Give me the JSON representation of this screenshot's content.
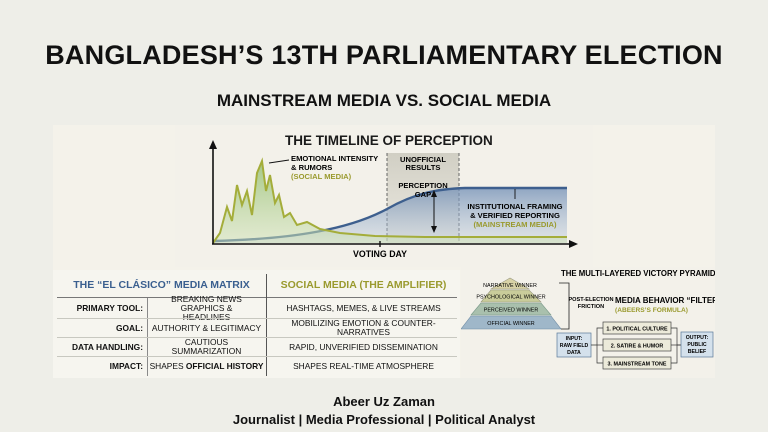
{
  "header": {
    "title": "BANGLADESH’S 13TH PARLIAMENTARY ELECTION",
    "subtitle": "MAINSTREAM MEDIA VS. SOCIAL MEDIA"
  },
  "timeline": {
    "title": "THE TIMELINE OF PERCEPTION",
    "emotional_line1": "EMOTIONAL INTENSITY",
    "emotional_line2": "& RUMORS",
    "emotional_source": "(SOCIAL MEDIA)",
    "unofficial_line1": "UNOFFICIAL",
    "unofficial_line2": "RESULTS",
    "gap_line1": "PERCEPTION",
    "gap_line2": "GAP",
    "institutional_line1": "INSTITUTIONAL FRAMING",
    "institutional_line2": "& VERIFIED REPORTING",
    "institutional_source": "(MAINSTREAM MEDIA)",
    "xlabel": "VOTING DAY",
    "colors": {
      "social": "#8fb86a",
      "mainstream": "#3d5f8e",
      "gap_band": "#c8c6b8"
    }
  },
  "matrix": {
    "head_left": "THE “EL CLÁSICO” MEDIA MATRIX",
    "head_right": "SOCIAL MEDIA (THE AMPLIFIER)",
    "rows": [
      {
        "label": "PRIMARY TOOL:",
        "left1": "BREAKING NEWS GRAPHICS &",
        "left2": "HEADLINES",
        "right": "HASHTAGS, MEMES, & LIVE STREAMS"
      },
      {
        "label": "GOAL:",
        "left": "AUTHORITY & LEGITIMACY",
        "right": "MOBILIZING EMOTION & COUNTER-NARRATIVES"
      },
      {
        "label": "DATA HANDLING:",
        "left": "CAUTIOUS SUMMARIZATION",
        "right": "RAPID, UNVERIFIED DISSEMINATION"
      },
      {
        "label": "IMPACT:",
        "left_pre": "SHAPES ",
        "left_bold": "OFFICIAL HISTORY",
        "right": "SHAPES REAL-TIME ATMOSPHERE"
      }
    ],
    "colors": {
      "mainstream_head": "#3a5f8f",
      "social_head": "#9a9a2e"
    }
  },
  "pyramid": {
    "title": "THE MULTI-LAYERED VICTORY PYRAMID",
    "levels": [
      "NARRATIVE WINNER",
      "PSYCHOLOGICAL WINNER",
      "PERCEIVED WINNER",
      "OFFICIAL WINNER"
    ],
    "friction_line1": "POST-ELECTION",
    "friction_line2": "FRICTION"
  },
  "filter": {
    "title_line1": "MEDIA BEHAVIOR “FILTER”",
    "title_line2": "(ABEERS’S FORMULA)",
    "input_line1": "INPUT:",
    "input_line2": "RAW FIELD",
    "input_line3": "DATA",
    "steps": [
      "1. POLITICAL CULTURE",
      "2. SATIRE & HUMOR",
      "3. MAINSTREAM TONE"
    ],
    "output_line1": "OUTPUT:",
    "output_line2": "PUBLIC",
    "output_line3": "BELIEF"
  },
  "footer": {
    "author": "Abeer Uz Zaman",
    "tagline": "Journalist | Media Professional | Political Analyst"
  }
}
